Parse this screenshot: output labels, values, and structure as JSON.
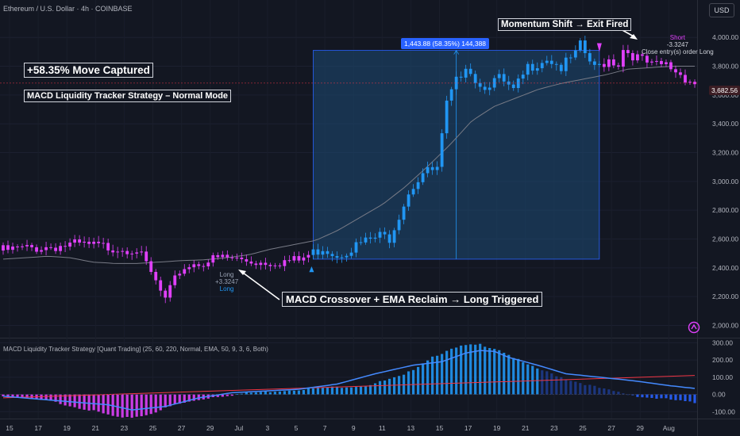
{
  "header": {
    "symbol_line": "Ethereum / U.S. Dollar · 4h · COINBASE",
    "currency_button": "USD"
  },
  "annotations": {
    "captured": "+58.35% Move Captured",
    "strategy_mode": "MACD Liquidity Tracker Strategy – Normal Mode",
    "exit": "Momentum Shift → Exit Fired",
    "entry": "MACD Crossover + EMA Reclaim → Long Triggered",
    "measure": "1,443.88 (58.35%) 144,388"
  },
  "signals": {
    "long_label": "Long",
    "long_value": "+3.3247",
    "long_order": "Long",
    "short_label": "Short",
    "short_value": "-3.3247",
    "short_order": "Close entry(s) order Long"
  },
  "price_tag": "3,682.56",
  "indicator_title": "MACD Liquidity Tracker Strategy [Quant Trading] (25, 60, 220, Normal, EMA, 50, 9, 3, 6, Both)",
  "colors": {
    "bull": "#2196f3",
    "bear": "#e040fb",
    "ema": "#787b86",
    "box": "#1e4a75",
    "macd": "#2962ff",
    "signal_line": "#f23645"
  },
  "chart_data": [
    {
      "type": "candlestick",
      "title": "Ethereum / U.S. Dollar · 4h · COINBASE",
      "y_ticks": [
        2000,
        2200,
        2400,
        2600,
        2800,
        3000,
        3200,
        3400,
        3600,
        3800,
        4000
      ],
      "ylim": [
        1920,
        4260
      ],
      "x_ticks": [
        "15",
        "17",
        "19",
        "21",
        "23",
        "25",
        "27",
        "29",
        "Jul",
        "3",
        "5",
        "7",
        "9",
        "11",
        "13",
        "15",
        "17",
        "19",
        "21",
        "23",
        "25",
        "27",
        "29",
        "Aug"
      ],
      "close_path": {
        "x": [
          0,
          15,
          28,
          31,
          34,
          37,
          39,
          46,
          54,
          62,
          67,
          70,
          75,
          79,
          81,
          85,
          88,
          91,
          93,
          95,
          97,
          100,
          104,
          107,
          110,
          114,
          117,
          120,
          121,
          124,
          127,
          129,
          130,
          133,
          136,
          139,
          142,
          145
        ],
        "close": [
          2520,
          2560,
          2530,
          2360,
          2170,
          2380,
          2420,
          2470,
          2440,
          2450,
          2540,
          2490,
          2570,
          2620,
          2610,
          2930,
          3060,
          3080,
          3530,
          3690,
          3820,
          3660,
          3710,
          3620,
          3790,
          3860,
          3790,
          3880,
          3940,
          3780,
          3850,
          3820,
          3920,
          3860,
          3800,
          3810,
          3745,
          3682
        ]
      },
      "ema": [
        2460,
        2470,
        2480,
        2470,
        2440,
        2430,
        2430,
        2440,
        2450,
        2455,
        2470,
        2490,
        2530,
        2560,
        2590,
        2660,
        2750,
        2840,
        2960,
        3100,
        3250,
        3420,
        3520,
        3580,
        3640,
        3680,
        3710,
        3740,
        3780,
        3790,
        3800,
        3800
      ],
      "long_entry": {
        "date": "Jun 30",
        "price": 2430
      },
      "exit": {
        "date": "Jul 28",
        "price": 3870
      },
      "measure": {
        "change": 1443.88,
        "percent": 58.35
      }
    },
    {
      "type": "bar",
      "title": "MACD Liquidity Tracker Strategy [Quant Trading] (25, 60, 220, Normal, EMA, 50, 9, 3, 6, Both)",
      "y_ticks": [
        -100,
        0,
        100,
        200,
        300
      ],
      "ylim": [
        -140,
        320
      ],
      "macd_path": {
        "x": [
          0,
          13,
          22,
          27,
          34,
          41,
          48,
          55,
          62,
          66,
          70,
          78,
          86,
          92,
          97,
          100,
          103,
          106,
          112,
          118,
          125,
          132,
          140,
          145
        ],
        "value": [
          -10,
          -40,
          -60,
          -90,
          -70,
          -20,
          10,
          20,
          30,
          45,
          60,
          120,
          170,
          190,
          240,
          255,
          250,
          215,
          170,
          120,
          100,
          80,
          50,
          35
        ]
      },
      "signal_line": {
        "start": -20,
        "end": 110
      },
      "histogram_path": {
        "x": [
          0,
          10,
          18,
          25,
          30,
          36,
          44,
          52,
          60,
          68,
          76,
          84,
          90,
          96,
          100,
          104,
          110,
          118,
          126,
          134,
          140,
          145
        ],
        "value": [
          -10,
          -40,
          -90,
          -140,
          -120,
          -60,
          -15,
          10,
          25,
          40,
          50,
          110,
          220,
          280,
          290,
          260,
          170,
          90,
          30,
          -15,
          -30,
          -50
        ]
      }
    }
  ]
}
